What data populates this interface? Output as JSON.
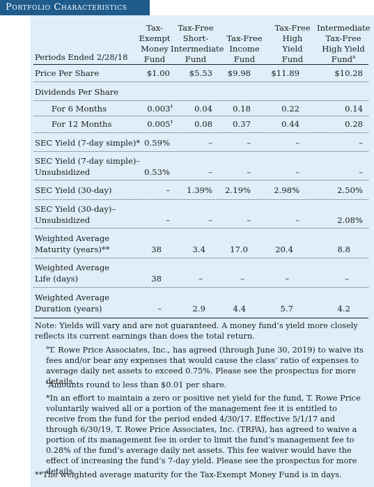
{
  "title": "Portfolio Characteristics",
  "periods_label": "Periods Ended 2/28/18",
  "columns": [
    [
      "Tax-",
      "Exempt",
      "Money",
      "Fund"
    ],
    [
      "Tax-Free",
      "Short-",
      "Intermediate",
      "Fund"
    ],
    [
      "Tax-Free",
      "Income",
      "Fund"
    ],
    [
      "Tax-Free",
      "High",
      "Yield",
      "Fund"
    ],
    [
      "Intermediate",
      "Tax-Free",
      "High Yield",
      "Fund"
    ]
  ],
  "col5_sup": "a",
  "rows": {
    "price_label": "Price Per Share",
    "price": [
      "$1.00",
      "$5.53",
      "$9.98",
      "$11.89",
      "$10.28"
    ],
    "div_label": "Dividends Per Share",
    "div6_label": "For 6 Months",
    "div6": [
      "0.003",
      "0.04",
      "0.18",
      "0.22",
      "0.14"
    ],
    "div12_label": "For 12 Months",
    "div12": [
      "0.005",
      "0.08",
      "0.37",
      "0.44",
      "0.28"
    ],
    "dagger": "‡",
    "sec7_label": "SEC Yield (7-day simple)*",
    "sec7": [
      "0.59%",
      "–",
      "–",
      "–",
      "–"
    ],
    "sec7u_label1": "SEC Yield (7-day simple)–",
    "sec7u_label2": "Unsubsidized",
    "sec7u": [
      "0.53%",
      "–",
      "–",
      "–",
      "–"
    ],
    "sec30_label": "SEC Yield (30-day)",
    "sec30": [
      "–",
      "1.39%",
      "2.19%",
      "2.98%",
      "2.50%"
    ],
    "sec30u_label1": "SEC Yield (30-day)–",
    "sec30u_label2": "Unsubsidized",
    "sec30u": [
      "–",
      "–",
      "–",
      "–",
      "2.08%"
    ],
    "wam_label1": "Weighted Average",
    "wam_label2": "Maturity (years)**",
    "wam": [
      "38",
      "3.4",
      "17.0",
      "20.4",
      "8.8"
    ],
    "wal_label1": "Weighted Average",
    "wal_label2": "Life (days)",
    "wal": [
      "38",
      "–",
      "–",
      "–",
      "–"
    ],
    "wad_label1": "Weighted Average",
    "wad_label2": "Duration (years)",
    "wad": [
      "–",
      "2.9",
      "4.4",
      "5.7",
      "4.2"
    ]
  },
  "notes": {
    "main": "Note: Yields will vary and are not guaranteed. A money fund’s yield more closely reflects its current earnings than does the total return.",
    "a_mark": "a",
    "a": "T. Rowe Price Associates, Inc., has agreed (through June 30, 2019) to waive its fees and/or bear any expenses that would cause the class’ ratio of expenses to average daily net assets to exceed 0.75%. Please see the prospectus for more details.",
    "dagger_mark": "‡",
    "dagger": "Amounts round to less than $0.01 per share.",
    "star": "*In an effort to maintain a zero or positive net yield for the fund, T. Rowe Price voluntarily waived all or a portion of the management fee it is entitled to receive from the fund for the period ended 4/30/17. Effective 5/1/17 and through 6/30/19, T. Rowe Price Associates, Inc. (TRPA), has agreed to waive a portion of its management fee in order to limit the fund’s management fee to 0.28% of the fund’s average daily net assets. This fee waiver would have the effect of increasing the fund’s 7-day yield. Please see the prospectus for more details.",
    "dstar": "**The weighted average maturity for the Tax-Exempt Money Fund is in days."
  }
}
